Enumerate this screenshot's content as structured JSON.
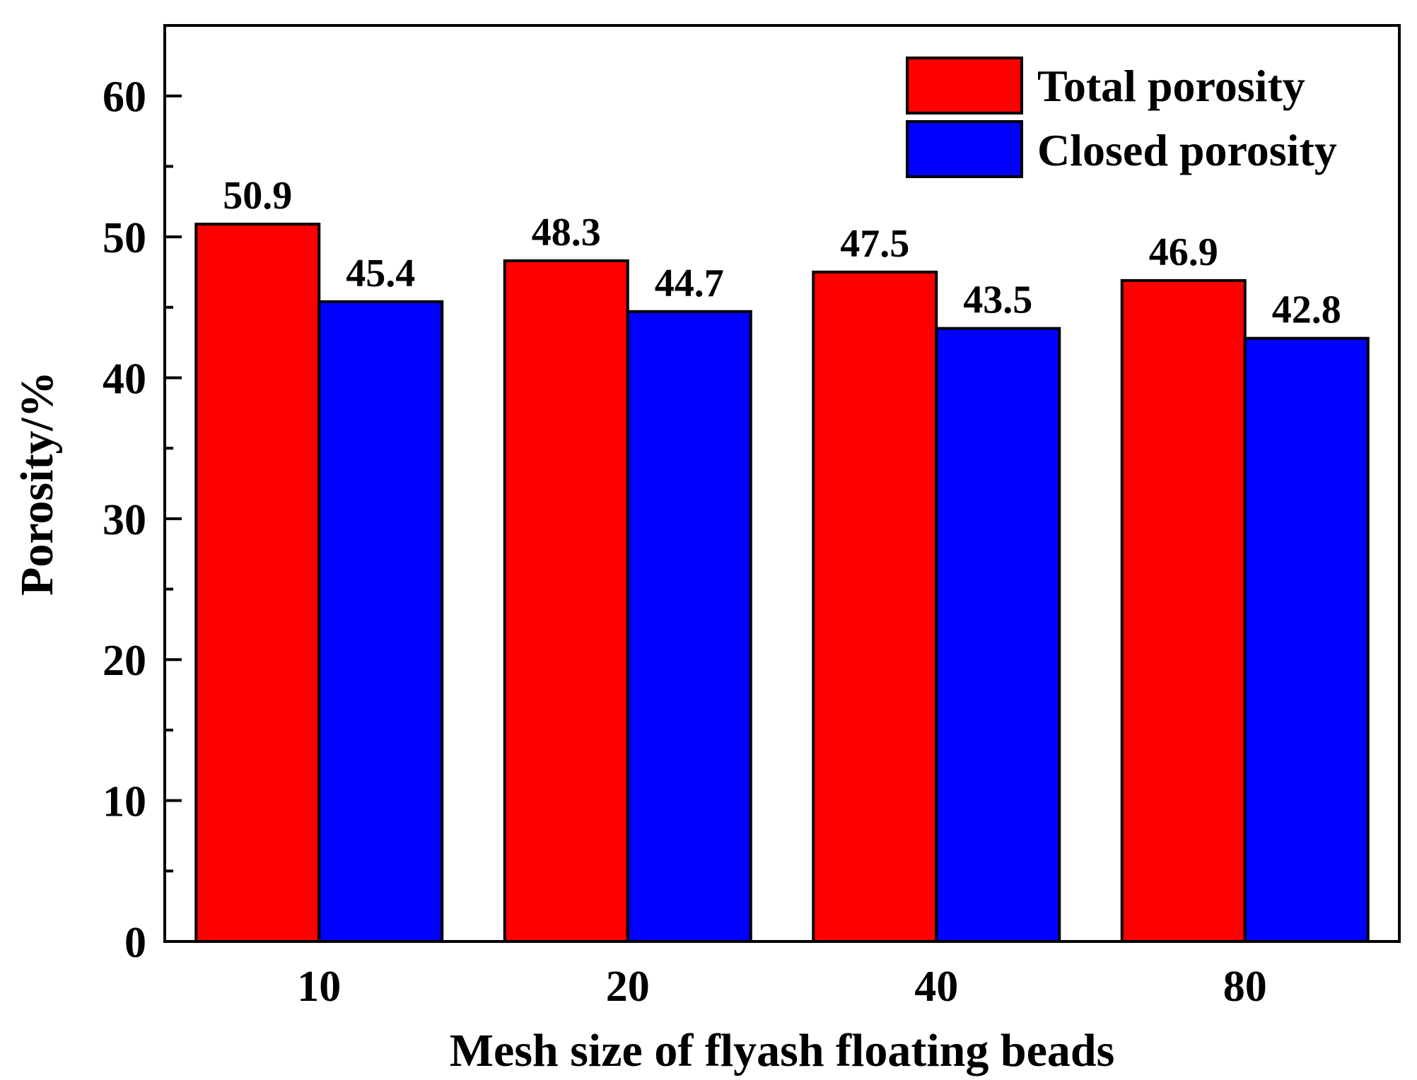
{
  "chart_data": {
    "type": "bar",
    "title": "",
    "xlabel": "Mesh size of flyash floating beads",
    "ylabel": "Porosity/%",
    "categories": [
      "10",
      "20",
      "40",
      "80"
    ],
    "series": [
      {
        "name": "Total porosity",
        "color": "#ff0000",
        "values": [
          50.9,
          48.3,
          47.5,
          46.9
        ]
      },
      {
        "name": "Closed porosity",
        "color": "#0000ff",
        "values": [
          45.4,
          44.7,
          43.5,
          42.8
        ]
      }
    ],
    "ylim": [
      0,
      65
    ],
    "yticks": [
      0,
      10,
      20,
      30,
      40,
      50,
      60
    ],
    "grid": false,
    "legend_position": "top-right",
    "data_labels": true
  }
}
